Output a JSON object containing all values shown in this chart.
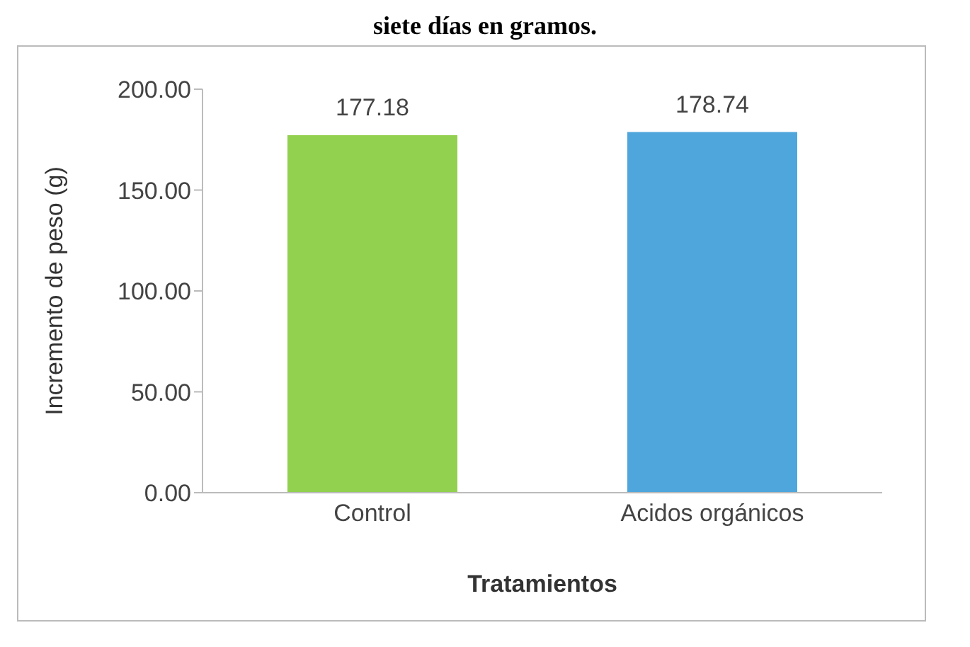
{
  "chart_data": {
    "type": "bar",
    "title": "siete días en gramos.",
    "categories": [
      "Control",
      "Acidos orgánicos"
    ],
    "values": [
      177.18,
      178.74
    ],
    "colors": [
      "#92d050",
      "#4ea6dc"
    ],
    "xlabel": "Tratamientos",
    "ylabel": "Incremento de peso (g)",
    "ylim": [
      0,
      200
    ],
    "yticks": [
      {
        "value": 0,
        "label": "0.00"
      },
      {
        "value": 50,
        "label": "50.00"
      },
      {
        "value": 100,
        "label": "100.00"
      },
      {
        "value": 150,
        "label": "150.00"
      },
      {
        "value": 200,
        "label": "200.00"
      }
    ],
    "data_labels": true,
    "grid": false,
    "legend": false
  }
}
